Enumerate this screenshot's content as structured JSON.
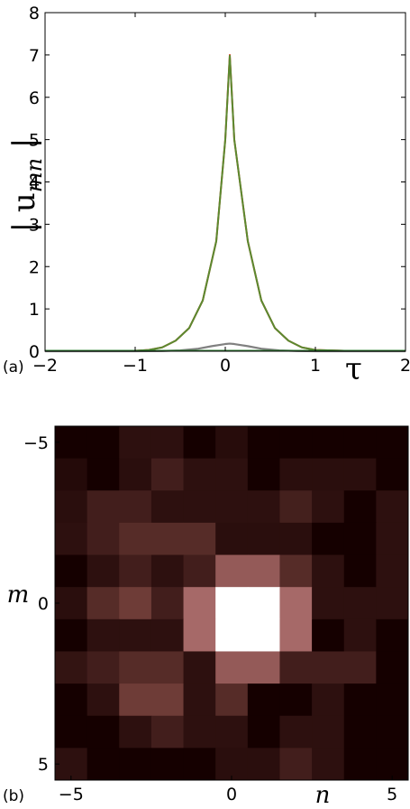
{
  "chart_data": [
    {
      "panel_label": "(a)",
      "type": "line",
      "ylabel_prefix": "| u",
      "ylabel_sub": "mn",
      "ylabel_suffix": " |",
      "xlabel": "τ",
      "xlim": [
        -2,
        2
      ],
      "ylim": [
        0,
        8
      ],
      "xticks": [
        -2,
        -1,
        0,
        1,
        2
      ],
      "xtick_labels": [
        "−2",
        "−1",
        "0",
        "1",
        "2"
      ],
      "yticks": [
        0,
        1,
        2,
        3,
        4,
        5,
        6,
        7,
        8
      ],
      "ytick_labels": [
        "0",
        "1",
        "2",
        "3",
        "4",
        "5",
        "6",
        "7",
        "8"
      ],
      "grid": false,
      "series": [
        {
          "color": "#e0301e",
          "x": [
            -2.0,
            -1.5,
            -1.0,
            -0.85,
            -0.7,
            -0.55,
            -0.4,
            -0.25,
            -0.1,
            0.0,
            0.05,
            0.1,
            0.25,
            0.4,
            0.55,
            0.7,
            0.85,
            1.0,
            1.5,
            2.0
          ],
          "y": [
            0.0,
            0.0,
            0.01,
            0.03,
            0.09,
            0.25,
            0.55,
            1.2,
            2.6,
            5.0,
            7.0,
            5.0,
            2.6,
            1.2,
            0.55,
            0.25,
            0.09,
            0.03,
            0.0,
            0.0
          ]
        },
        {
          "color": "#5a8a30",
          "x": [
            -2.0,
            -1.5,
            -1.0,
            -0.85,
            -0.7,
            -0.55,
            -0.4,
            -0.25,
            -0.1,
            0.0,
            0.05,
            0.1,
            0.25,
            0.4,
            0.55,
            0.7,
            0.85,
            1.0,
            1.5,
            2.0
          ],
          "y": [
            0.0,
            0.0,
            0.01,
            0.03,
            0.09,
            0.25,
            0.55,
            1.2,
            2.6,
            5.0,
            6.98,
            5.0,
            2.6,
            1.2,
            0.55,
            0.25,
            0.09,
            0.03,
            0.0,
            0.0
          ]
        },
        {
          "color": "#808080",
          "x": [
            -2.0,
            -1.0,
            -0.7,
            -0.5,
            -0.3,
            -0.15,
            0.0,
            0.05,
            0.1,
            0.25,
            0.4,
            0.6,
            0.8,
            1.0,
            2.0
          ],
          "y": [
            0.0,
            0.0,
            0.005,
            0.02,
            0.06,
            0.12,
            0.17,
            0.18,
            0.17,
            0.12,
            0.06,
            0.02,
            0.005,
            0.0,
            0.0
          ]
        },
        {
          "color": "#2e7d32",
          "x": [
            -2.0,
            -1.0,
            0.0,
            1.0,
            2.0
          ],
          "y": [
            0.01,
            0.01,
            0.01,
            0.01,
            0.01
          ]
        }
      ]
    },
    {
      "panel_label": "(b)",
      "type": "heatmap",
      "xlabel": "n",
      "ylabel": "m",
      "x_range": [
        -5,
        5
      ],
      "y_range": [
        -5,
        5
      ],
      "xtick_values": [
        -5,
        0,
        5
      ],
      "xtick_labels": [
        "−5",
        "0",
        "5"
      ],
      "ytick_values": [
        -5,
        0,
        5
      ],
      "ytick_labels": [
        "−5",
        "0",
        "5"
      ],
      "value_range": [
        0,
        1
      ],
      "colormap_dark": "#150000",
      "colormap_light": "#ffffff",
      "values": [
        [
          0.0,
          0.0,
          0.08,
          0.08,
          0.0,
          0.06,
          0.0,
          0.0,
          0.0,
          0.0,
          0.0
        ],
        [
          0.05,
          0.0,
          0.07,
          0.15,
          0.08,
          0.08,
          0.0,
          0.07,
          0.07,
          0.07,
          0.0
        ],
        [
          0.07,
          0.15,
          0.15,
          0.08,
          0.08,
          0.08,
          0.08,
          0.16,
          0.08,
          0.0,
          0.08
        ],
        [
          0.08,
          0.15,
          0.22,
          0.22,
          0.22,
          0.07,
          0.07,
          0.07,
          0.0,
          0.0,
          0.08
        ],
        [
          0.0,
          0.08,
          0.15,
          0.08,
          0.15,
          0.4,
          0.4,
          0.22,
          0.08,
          0.0,
          0.08
        ],
        [
          0.07,
          0.22,
          0.3,
          0.15,
          0.45,
          1.0,
          1.0,
          0.45,
          0.08,
          0.08,
          0.08
        ],
        [
          0.0,
          0.08,
          0.08,
          0.08,
          0.45,
          1.0,
          1.0,
          0.45,
          0.0,
          0.08,
          0.0
        ],
        [
          0.1,
          0.15,
          0.22,
          0.22,
          0.08,
          0.4,
          0.4,
          0.15,
          0.15,
          0.15,
          0.0
        ],
        [
          0.0,
          0.08,
          0.3,
          0.3,
          0.08,
          0.22,
          0.0,
          0.0,
          0.08,
          0.0,
          0.0
        ],
        [
          0.0,
          0.0,
          0.08,
          0.15,
          0.08,
          0.08,
          0.0,
          0.08,
          0.08,
          0.0,
          0.0
        ],
        [
          0.08,
          0.0,
          0.0,
          0.0,
          0.0,
          0.07,
          0.07,
          0.15,
          0.08,
          0.0,
          0.0
        ]
      ]
    }
  ]
}
